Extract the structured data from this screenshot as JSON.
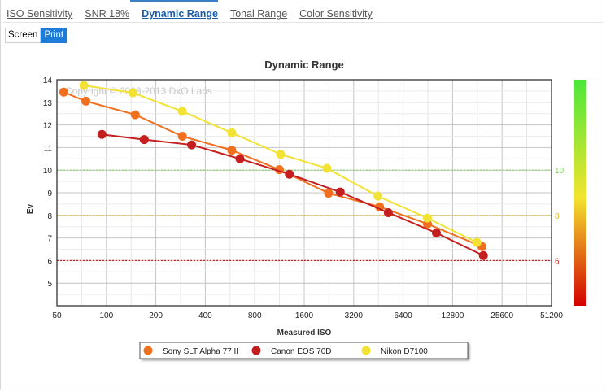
{
  "tabs": [
    {
      "label": "ISO Sensitivity",
      "active": false
    },
    {
      "label": "SNR 18%",
      "active": false
    },
    {
      "label": "Dynamic Range",
      "active": true
    },
    {
      "label": "Tonal Range",
      "active": false
    },
    {
      "label": "Color Sensitivity",
      "active": false
    }
  ],
  "mode": {
    "screen_label": "Screen",
    "print_label": "Print",
    "selected": "Print"
  },
  "chart_data": {
    "type": "line",
    "title": "Dynamic Range",
    "xlabel": "Measured ISO",
    "ylabel": "Ev",
    "x_scale": "log2",
    "x_ticks": [
      50,
      100,
      200,
      400,
      800,
      1600,
      3200,
      6400,
      12800,
      25600,
      51200
    ],
    "x_tick_labels": [
      "50",
      "100",
      "200",
      "400",
      "800",
      "1600",
      "3200",
      "6400",
      "12800",
      "25600",
      "51200"
    ],
    "ylim": [
      4,
      14
    ],
    "y_ticks": [
      5,
      6,
      7,
      8,
      9,
      10,
      11,
      12,
      13,
      14
    ],
    "y_tick_labels": [
      "5",
      "6",
      "7",
      "8",
      "9",
      "10",
      "11",
      "12",
      "13",
      "14"
    ],
    "grid": true,
    "watermark": "Copyright © 2008-2013 DxO Labs",
    "reference_lines": [
      {
        "y": 10,
        "label": "10",
        "color": "#7dd35a"
      },
      {
        "y": 8,
        "label": "8",
        "color": "#e8c020"
      },
      {
        "y": 6,
        "label": "6",
        "color": "#cc2222"
      }
    ],
    "color_scale": {
      "top": "#4ce63a",
      "mid": "#f2e52e",
      "bottom": "#d40000"
    },
    "legend_position": "bottom",
    "series": [
      {
        "name": "Sony SLT Alpha 77 II",
        "color": "#f07020",
        "points": [
          [
            55,
            13.45
          ],
          [
            75,
            13.05
          ],
          [
            150,
            12.45
          ],
          [
            290,
            11.5
          ],
          [
            580,
            10.88
          ],
          [
            1130,
            10.02
          ],
          [
            2250,
            8.98
          ],
          [
            4600,
            8.38
          ],
          [
            9000,
            7.62
          ],
          [
            19300,
            6.62
          ]
        ]
      },
      {
        "name": "Canon EOS 70D",
        "color": "#c41e1e",
        "points": [
          [
            94,
            11.58
          ],
          [
            170,
            11.35
          ],
          [
            330,
            11.12
          ],
          [
            650,
            10.5
          ],
          [
            1300,
            9.82
          ],
          [
            2650,
            9.03
          ],
          [
            5200,
            8.12
          ],
          [
            10200,
            7.22
          ],
          [
            19700,
            6.22
          ]
        ]
      },
      {
        "name": "Nikon D7100",
        "color": "#f2e234",
        "points": [
          [
            73,
            13.75
          ],
          [
            145,
            13.42
          ],
          [
            290,
            12.6
          ],
          [
            580,
            11.65
          ],
          [
            1150,
            10.7
          ],
          [
            2200,
            10.08
          ],
          [
            4500,
            8.85
          ],
          [
            9000,
            7.88
          ],
          [
            18000,
            6.8
          ]
        ]
      }
    ]
  }
}
